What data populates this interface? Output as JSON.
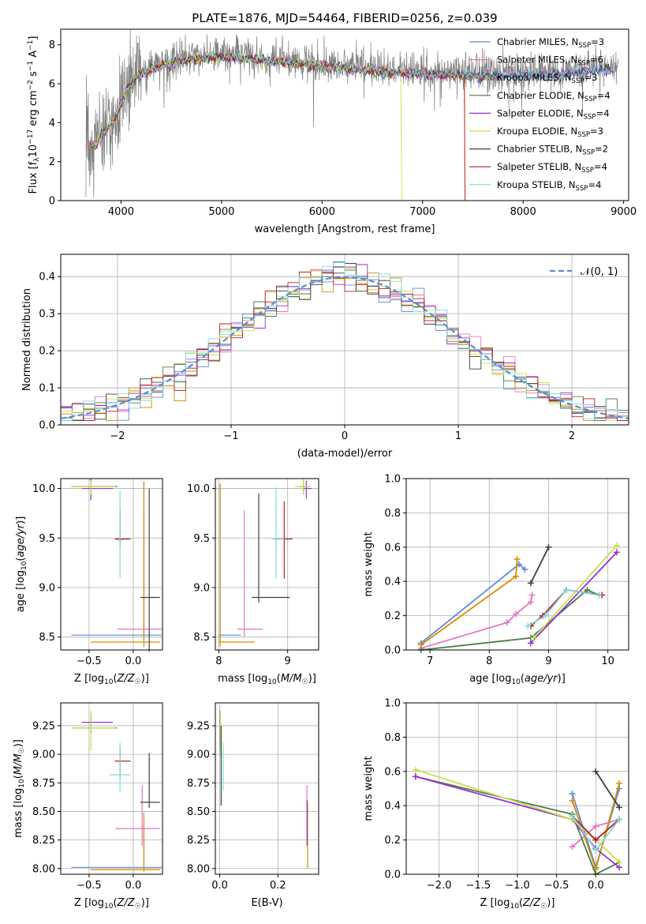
{
  "title": "PLATE=1876, MJD=54464, FIBERID=0256, z=0.039",
  "colors": {
    "chabrier_miles": "#5b8bd6",
    "salpeter_miles": "#e377c2",
    "kroupa_miles": "#d98c00",
    "chabrier_elodie": "#4c7c4c",
    "salpeter_elodie": "#9932cc",
    "kroupa_elodie": "#c8e04a",
    "chabrier_stelib": "#404040",
    "salpeter_stelib": "#b22222",
    "kroupa_stelib": "#7fdcdc",
    "observed": "#808080",
    "gaussian": "#5b8bd6"
  },
  "chart_data": [
    {
      "id": "spectrum",
      "type": "line",
      "xlabel": "wavelength [Angstrom, rest frame]",
      "ylabel": "Flux [f_λ 10^-17 erg cm^-2 s^-1 A^-1]",
      "xlim": [
        3400,
        9050
      ],
      "ylim": [
        0,
        8.8
      ],
      "xticks": [
        "4000",
        "5000",
        "6000",
        "7000",
        "8000",
        "9000"
      ],
      "yticks": [
        "0",
        "2",
        "4",
        "6",
        "8"
      ],
      "legend_position": "top-right",
      "legend": [
        {
          "key": "chabrier_miles",
          "label": "Chabrier MILES, N",
          "sub": "SSP",
          "suffix": "=3"
        },
        {
          "key": "salpeter_miles",
          "label": "Salpeter MILES, N",
          "sub": "SSP",
          "suffix": "=6"
        },
        {
          "key": "kroupa_miles",
          "label": "Kroupa MILES, N",
          "sub": "SSP",
          "suffix": "=3"
        },
        {
          "key": "chabrier_elodie",
          "label": "Chabrier ELODIE, N",
          "sub": "SSP",
          "suffix": "=4"
        },
        {
          "key": "salpeter_elodie",
          "label": "Salpeter ELODIE, N",
          "sub": "SSP",
          "suffix": "=4"
        },
        {
          "key": "kroupa_elodie",
          "label": "Kroupa ELODIE, N",
          "sub": "SSP",
          "suffix": "=3"
        },
        {
          "key": "chabrier_stelib",
          "label": "Chabrier STELIB, N",
          "sub": "SSP",
          "suffix": "=2"
        },
        {
          "key": "salpeter_stelib",
          "label": "Salpeter STELIB, N",
          "sub": "SSP",
          "suffix": "=4"
        },
        {
          "key": "kroupa_stelib",
          "label": "Kroupa STELIB, N",
          "sub": "SSP",
          "suffix": "=4"
        }
      ],
      "continuum": {
        "x": [
          3650,
          3750,
          3850,
          3950,
          4050,
          4150,
          4300,
          4500,
          4700,
          4900,
          5100,
          5300,
          5500,
          5700,
          5900,
          6100,
          6300,
          6500,
          6700,
          6900,
          7100,
          7300,
          7500,
          7700,
          7900,
          8100,
          8300,
          8500,
          8700,
          8900
        ],
        "y": [
          3.2,
          3.0,
          3.8,
          4.5,
          5.8,
          6.5,
          6.9,
          7.2,
          7.4,
          7.5,
          7.5,
          7.4,
          7.3,
          7.2,
          7.1,
          7.0,
          6.9,
          6.8,
          6.7,
          6.7,
          6.6,
          6.6,
          6.55,
          6.55,
          6.5,
          6.6,
          6.6,
          6.7,
          6.8,
          6.9
        ]
      }
    },
    {
      "id": "residuals",
      "type": "histogram",
      "xlabel": "(data-model)/error",
      "ylabel": "Normed distribution",
      "xlim": [
        -2.5,
        2.5
      ],
      "ylim": [
        0,
        0.46
      ],
      "xticks": [
        "−2",
        "−1",
        "0",
        "1",
        "2"
      ],
      "yticks": [
        "0.0",
        "0.1",
        "0.2",
        "0.3",
        "0.4"
      ],
      "legend_label": "𝒩(0, 1)",
      "legend_position": "top-right",
      "bin_width": 0.1
    },
    {
      "id": "z_age",
      "type": "errorbar",
      "xlabel": "Z [log10(Z/Z☉)]",
      "ylabel": "age  [log10(age/yr)]",
      "xlim": [
        -0.82,
        0.33
      ],
      "ylim": [
        8.37,
        10.1
      ],
      "xticks": [
        "−0.5",
        "0.0"
      ],
      "yticks": [
        "8.5",
        "9.0",
        "9.5",
        "10.0"
      ],
      "points": [
        {
          "c": "chabrier_miles",
          "x": 0.12,
          "y": 8.52,
          "xe": [
            0.82,
            0.2
          ],
          "ye": [
            0.05,
            1.55
          ]
        },
        {
          "c": "salpeter_miles",
          "x": 0.12,
          "y": 8.58,
          "xe": [
            0.3,
            0.2
          ],
          "ye": [
            0.08,
            1.2
          ]
        },
        {
          "c": "kroupa_miles",
          "x": 0.12,
          "y": 8.45,
          "xe": [
            0.6,
            0.18
          ],
          "ye": [
            0.05,
            1.6
          ]
        },
        {
          "c": "chabrier_elodie",
          "x": -0.48,
          "y": 10.02,
          "xe": [
            0.22,
            0.3
          ],
          "ye": [
            0.1,
            0.08
          ]
        },
        {
          "c": "salpeter_elodie",
          "x": -0.48,
          "y": 10.0,
          "xe": [
            0.1,
            0.25
          ],
          "ye": [
            0.12,
            0.1
          ]
        },
        {
          "c": "kroupa_elodie",
          "x": -0.48,
          "y": 10.02,
          "xe": [
            0.22,
            0.28
          ],
          "ye": [
            0.08,
            0.06
          ]
        },
        {
          "c": "chabrier_stelib",
          "x": 0.18,
          "y": 8.9,
          "xe": [
            0.1,
            0.12
          ],
          "ye": [
            0.55,
            1.1
          ]
        },
        {
          "c": "salpeter_stelib",
          "x": -0.15,
          "y": 9.49,
          "xe": [
            0.06,
            0.12
          ],
          "ye": [
            0.08,
            0.3
          ]
        },
        {
          "c": "kroupa_stelib",
          "x": -0.15,
          "y": 9.48,
          "xe": [
            0.04,
            0.04
          ],
          "ye": [
            0.38,
            0.5
          ]
        }
      ]
    },
    {
      "id": "mass_age",
      "type": "errorbar",
      "xlabel": "mass [log10(M/M☉)]",
      "ylabel": "",
      "xlim": [
        7.95,
        9.45
      ],
      "ylim": [
        8.37,
        10.1
      ],
      "xticks": [
        "8",
        "9"
      ],
      "yticks": [
        "8.5",
        "9.0",
        "9.5",
        "10.0"
      ],
      "points": [
        {
          "c": "chabrier_miles",
          "x": 8.02,
          "y": 8.52,
          "xe": [
            0.02,
            0.3
          ],
          "ye": [
            0.05,
            1.5
          ]
        },
        {
          "c": "salpeter_miles",
          "x": 8.37,
          "y": 8.58,
          "xe": [
            0.1,
            0.27
          ],
          "ye": [
            0.08,
            1.2
          ]
        },
        {
          "c": "kroupa_miles",
          "x": 8.02,
          "y": 8.45,
          "xe": [
            0.02,
            0.5
          ],
          "ye": [
            0.05,
            1.6
          ]
        },
        {
          "c": "chabrier_elodie",
          "x": 9.23,
          "y": 10.02,
          "xe": [
            0.05,
            0.1
          ],
          "ye": [
            0.08,
            0.06
          ]
        },
        {
          "c": "salpeter_elodie",
          "x": 9.27,
          "y": 10.0,
          "xe": [
            0.05,
            0.08
          ],
          "ye": [
            0.1,
            0.08
          ]
        },
        {
          "c": "kroupa_elodie",
          "x": 9.23,
          "y": 10.02,
          "xe": [
            0.12,
            0.1
          ],
          "ye": [
            0.08,
            0.08
          ]
        },
        {
          "c": "chabrier_stelib",
          "x": 8.58,
          "y": 8.9,
          "xe": [
            0.1,
            0.45
          ],
          "ye": [
            0.05,
            1.05
          ]
        },
        {
          "c": "salpeter_stelib",
          "x": 8.95,
          "y": 9.49,
          "xe": [
            0.15,
            0.12
          ],
          "ye": [
            0.4,
            0.38
          ]
        },
        {
          "c": "kroupa_stelib",
          "x": 8.83,
          "y": 9.49,
          "xe": [
            0.05,
            0.12
          ],
          "ye": [
            0.4,
            0.52
          ]
        }
      ]
    },
    {
      "id": "age_weight",
      "type": "line",
      "xlabel": "age  [log10(age/yr)]",
      "ylabel": "mass weight",
      "xlim": [
        6.6,
        10.35
      ],
      "ylim": [
        0,
        1.0
      ],
      "xticks": [
        "7",
        "8",
        "9",
        "10"
      ],
      "yticks": [
        "0.0",
        "0.2",
        "0.4",
        "0.6",
        "0.8",
        "1.0"
      ],
      "series": [
        {
          "c": "chabrier_miles",
          "x": [
            6.85,
            8.5,
            8.6
          ],
          "y": [
            0.04,
            0.5,
            0.47
          ]
        },
        {
          "c": "salpeter_miles",
          "x": [
            6.85,
            8.3,
            8.45,
            8.7,
            8.72
          ],
          "y": [
            0.01,
            0.16,
            0.21,
            0.28,
            0.32
          ]
        },
        {
          "c": "kroupa_miles",
          "x": [
            6.85,
            8.45,
            8.47
          ],
          "y": [
            0.03,
            0.43,
            0.53
          ]
        },
        {
          "c": "chabrier_elodie",
          "x": [
            6.85,
            8.7,
            9.65,
            9.85
          ],
          "y": [
            0.0,
            0.07,
            0.35,
            0.32
          ]
        },
        {
          "c": "salpeter_elodie",
          "x": [
            8.7,
            10.15
          ],
          "y": [
            0.04,
            0.57
          ]
        },
        {
          "c": "kroupa_elodie",
          "x": [
            8.75,
            10.15
          ],
          "y": [
            0.07,
            0.61
          ]
        },
        {
          "c": "chabrier_stelib",
          "x": [
            8.7,
            9.0
          ],
          "y": [
            0.39,
            0.6
          ]
        },
        {
          "c": "salpeter_stelib",
          "x": [
            8.7,
            8.9,
            9.3,
            9.9
          ],
          "y": [
            0.14,
            0.2,
            0.35,
            0.32
          ]
        },
        {
          "c": "kroupa_stelib",
          "x": [
            8.65,
            8.95,
            9.3,
            9.85
          ],
          "y": [
            0.14,
            0.2,
            0.35,
            0.32
          ]
        }
      ]
    },
    {
      "id": "z_mass",
      "type": "errorbar",
      "xlabel": "Z [log10(Z/Z☉)]",
      "ylabel": "mass [log10(M/M☉)]",
      "xlim": [
        -0.82,
        0.33
      ],
      "ylim": [
        7.95,
        9.45
      ],
      "xticks": [
        "−0.5",
        "0.0"
      ],
      "yticks": [
        "8.00",
        "8.25",
        "8.50",
        "8.75",
        "9.00",
        "9.25"
      ],
      "points": [
        {
          "c": "chabrier_miles",
          "x": 0.12,
          "y": 8.01,
          "xe": [
            0.82,
            0.2
          ],
          "ye": [
            0.02,
            0.4
          ]
        },
        {
          "c": "salpeter_miles",
          "x": 0.1,
          "y": 8.35,
          "xe": [
            0.3,
            0.2
          ],
          "ye": [
            0.15,
            0.38
          ]
        },
        {
          "c": "kroupa_miles",
          "x": 0.12,
          "y": 7.99,
          "xe": [
            0.6,
            0.18
          ],
          "ye": [
            0.02,
            0.5
          ]
        },
        {
          "c": "chabrier_elodie",
          "x": -0.48,
          "y": 9.23,
          "xe": [
            0.22,
            0.3
          ],
          "ye": [
            0.05,
            0.1
          ]
        },
        {
          "c": "salpeter_elodie",
          "x": -0.48,
          "y": 9.28,
          "xe": [
            0.1,
            0.25
          ],
          "ye": [
            0.1,
            0.08
          ]
        },
        {
          "c": "kroupa_elodie",
          "x": -0.48,
          "y": 9.23,
          "xe": [
            0.22,
            0.28
          ],
          "ye": [
            0.2,
            0.15
          ]
        },
        {
          "c": "chabrier_stelib",
          "x": 0.18,
          "y": 8.58,
          "xe": [
            0.1,
            0.12
          ],
          "ye": [
            0.05,
            0.43
          ]
        },
        {
          "c": "salpeter_stelib",
          "x": -0.15,
          "y": 8.94,
          "xe": [
            0.06,
            0.12
          ],
          "ye": [
            0.15,
            0.12
          ]
        },
        {
          "c": "kroupa_stelib",
          "x": -0.15,
          "y": 8.82,
          "xe": [
            0.12,
            0.12
          ],
          "ye": [
            0.15,
            0.28
          ]
        }
      ]
    },
    {
      "id": "ebv_mass",
      "type": "errorbar",
      "xlabel": "E(B-V)",
      "ylabel": "",
      "xlim": [
        -0.015,
        0.34
      ],
      "ylim": [
        7.95,
        9.45
      ],
      "xticks": [
        "0.0",
        "0.2"
      ],
      "yticks": [
        "8.00",
        "8.25",
        "8.50",
        "8.75",
        "9.00",
        "9.25"
      ],
      "points": [
        {
          "c": "chabrier_elodie",
          "x": 0.002,
          "y": 9.23,
          "xe": [
            0,
            0
          ],
          "ye": [
            0.2,
            0.15
          ]
        },
        {
          "c": "kroupa_elodie",
          "x": 0.003,
          "y": 9.23,
          "xe": [
            0,
            0
          ],
          "ye": [
            0.25,
            0.15
          ]
        },
        {
          "c": "chabrier_stelib",
          "x": 0.005,
          "y": 8.95,
          "xe": [
            0,
            0
          ],
          "ye": [
            0.4,
            0.3
          ]
        },
        {
          "c": "kroupa_stelib",
          "x": 0.012,
          "y": 8.9,
          "xe": [
            0,
            0
          ],
          "ye": [
            0.22,
            0.2
          ]
        },
        {
          "c": "salpeter_miles",
          "x": 0.3,
          "y": 8.35,
          "xe": [
            0,
            0
          ],
          "ye": [
            0.12,
            0.38
          ]
        },
        {
          "c": "kroupa_miles",
          "x": 0.302,
          "y": 8.3,
          "xe": [
            0,
            0
          ],
          "ye": [
            0.3,
            0.28
          ]
        },
        {
          "c": "salpeter_elodie",
          "x": 0.3,
          "y": 8.4,
          "xe": [
            0,
            0
          ],
          "ye": [
            0.2,
            0.2
          ]
        }
      ]
    },
    {
      "id": "z_weight",
      "type": "line",
      "xlabel": "Z [log10(Z/Z☉)]",
      "ylabel": "mass weight",
      "xlim": [
        -2.42,
        0.42
      ],
      "ylim": [
        0,
        1.0
      ],
      "xticks": [
        "−2.0",
        "−1.5",
        "−1.0",
        "−0.5",
        "0.0"
      ],
      "yticks": [
        "0.0",
        "0.2",
        "0.4",
        "0.6",
        "0.8",
        "1.0"
      ],
      "series": [
        {
          "c": "chabrier_miles",
          "x": [
            -0.3,
            0.0,
            0.3
          ],
          "y": [
            0.47,
            0.04,
            0.5
          ]
        },
        {
          "c": "salpeter_miles",
          "x": [
            -0.3,
            0.0,
            0.3
          ],
          "y": [
            0.16,
            0.28,
            0.32
          ]
        },
        {
          "c": "kroupa_miles",
          "x": [
            -0.3,
            0.0,
            0.3
          ],
          "y": [
            0.43,
            0.03,
            0.53
          ]
        },
        {
          "c": "chabrier_elodie",
          "x": [
            -2.3,
            -0.3,
            0.0,
            0.3
          ],
          "y": [
            0.57,
            0.35,
            0.0,
            0.07
          ]
        },
        {
          "c": "salpeter_elodie",
          "x": [
            -2.3,
            -0.3,
            0.0,
            0.3
          ],
          "y": [
            0.57,
            0.32,
            0.15,
            0.04
          ]
        },
        {
          "c": "kroupa_elodie",
          "x": [
            -2.3,
            -0.3,
            0.0,
            0.3
          ],
          "y": [
            0.61,
            0.32,
            0.2,
            0.07
          ]
        },
        {
          "c": "chabrier_stelib",
          "x": [
            0.0,
            0.3
          ],
          "y": [
            0.6,
            0.39
          ]
        },
        {
          "c": "salpeter_stelib",
          "x": [
            -0.3,
            0.0,
            0.3
          ],
          "y": [
            0.34,
            0.2,
            0.32
          ]
        },
        {
          "c": "kroupa_stelib",
          "x": [
            -0.3,
            0.0,
            0.3
          ],
          "y": [
            0.34,
            0.14,
            0.32
          ]
        }
      ]
    }
  ]
}
